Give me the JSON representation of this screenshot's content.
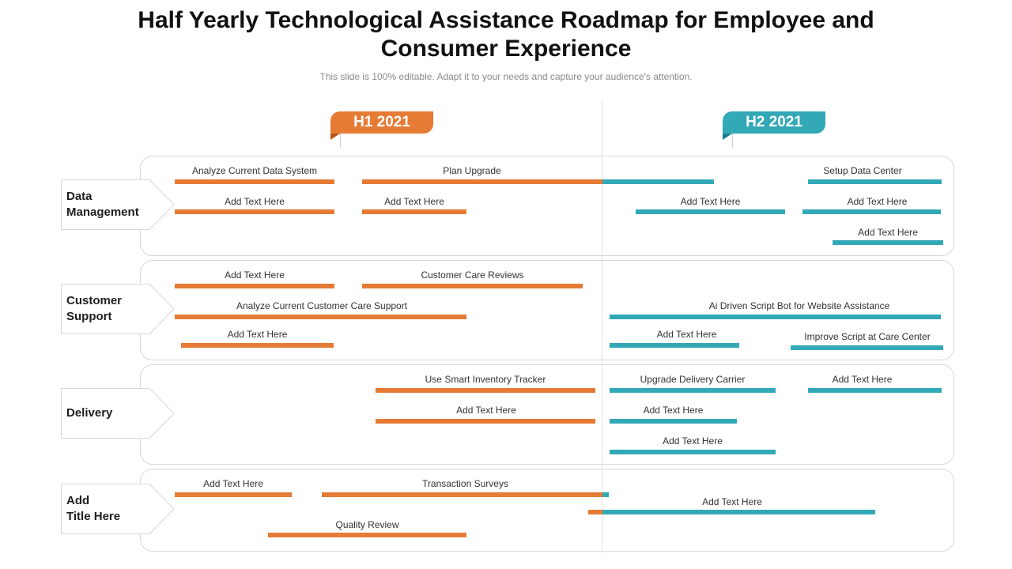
{
  "title": "Half Yearly Technological Assistance Roadmap for Employee and Consumer Experience",
  "subtitle": "This slide is 100% editable. Adapt it to your needs and capture your audience's attention.",
  "colors": {
    "h1": "#e57b35",
    "h2": "#33a9b8",
    "border": "#d8d8d8"
  },
  "periods": [
    {
      "label": "H1 2021"
    },
    {
      "label": "H2 2021"
    }
  ],
  "rows": [
    {
      "label": "Data\nManagement",
      "tasks": [
        "Analyze  Current Data System",
        "Plan Upgrade",
        "Setup Data Center",
        "Add Text Here",
        "Add Text Here",
        "Add Text Here",
        "Add Text Here",
        "Add Text Here"
      ]
    },
    {
      "label": "Customer\nSupport",
      "tasks": [
        "Add Text Here",
        "Customer Care Reviews",
        "Analyze  Current Customer Care Support",
        "Ai Driven Script Bot for Website Assistance",
        "Add Text Here",
        "Add Text Here",
        "Improve Script at Care Center"
      ]
    },
    {
      "label": "Delivery",
      "tasks": [
        "Use Smart Inventory Tracker",
        "Upgrade Delivery Carrier",
        "Add Text Here",
        "Add Text Here",
        "Add Text Here",
        "Add Text Here"
      ]
    },
    {
      "label": "Add\nTitle Here",
      "tasks": [
        "Add Text Here",
        "Transaction Surveys",
        "Add Text Here",
        "Quality Review"
      ]
    }
  ]
}
